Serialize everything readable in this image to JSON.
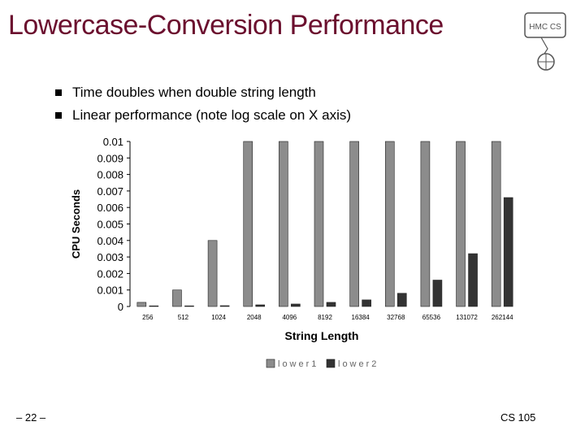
{
  "slide": {
    "title": "Lowercase-Conversion Performance",
    "bullets": [
      "Time doubles when double string length",
      "Linear performance (note log scale on X axis)"
    ],
    "slide_number": "– 22 –",
    "course": "CS 105",
    "logo_text": "HMC CS"
  },
  "chart_data": {
    "type": "bar",
    "xlabel": "String Length",
    "ylabel": "CPU Seconds",
    "categories": [
      "256",
      "512",
      "1024",
      "2048",
      "4096",
      "8192",
      "16384",
      "32768",
      "65536",
      "131072",
      "262144"
    ],
    "ylim": [
      0,
      0.01
    ],
    "yticks": [
      "0",
      "0.001",
      "0.002",
      "0.003",
      "0.004",
      "0.005",
      "0.006",
      "0.007",
      "0.008",
      "0.009",
      "0.01"
    ],
    "series": [
      {
        "name": "lower1",
        "color": "#8c8c8c",
        "values": [
          0.00025,
          0.001,
          0.004,
          0.01,
          0.01,
          0.01,
          0.01,
          0.01,
          0.01,
          0.01,
          0.01
        ]
      },
      {
        "name": "lower2",
        "color": "#333333",
        "values": [
          0,
          0,
          5e-05,
          0.0001,
          0.00015,
          0.00025,
          0.0004,
          0.0008,
          0.0016,
          0.0032,
          0.0066
        ]
      }
    ],
    "legend_position": "bottom",
    "grid": false
  }
}
